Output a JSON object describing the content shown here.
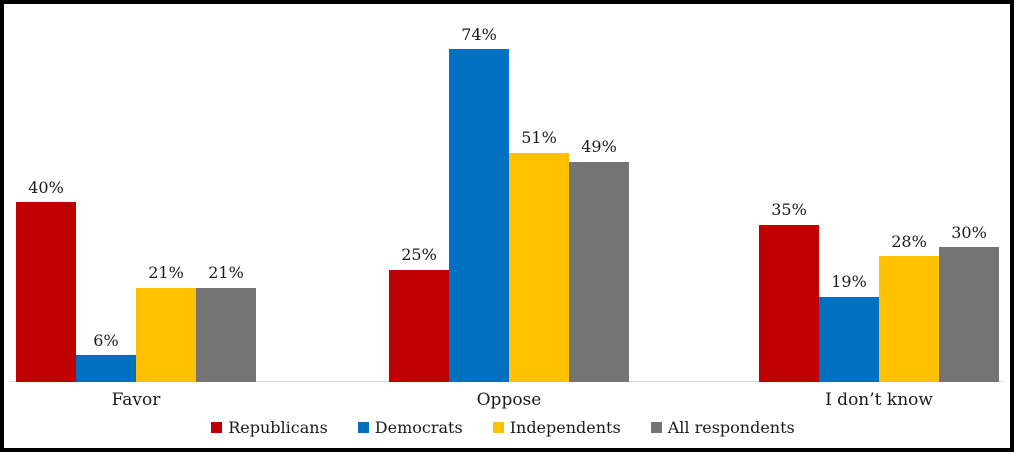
{
  "chart_data": {
    "type": "bar",
    "title": "",
    "xlabel": "",
    "ylabel": "",
    "categories": [
      "Favor",
      "Oppose",
      "I don’t know"
    ],
    "series": [
      {
        "name": "Republicans",
        "color": "#C00000",
        "values": [
          40,
          25,
          35
        ]
      },
      {
        "name": "Democrats",
        "color": "#0070C0",
        "values": [
          6,
          74,
          19
        ]
      },
      {
        "name": "Independents",
        "color": "#FFC000",
        "values": [
          21,
          51,
          28
        ]
      },
      {
        "name": "All respondents",
        "color": "#747474",
        "values": [
          21,
          49,
          30
        ]
      }
    ],
    "value_suffix": "%",
    "data_labels": true,
    "ylim": [
      0,
      84
    ],
    "grid": false,
    "y_axis_visible": false,
    "legend_position": "bottom",
    "axis_line_color": "#D9D9D9"
  },
  "frame": {
    "border_color": "#000000",
    "background": "#FFFFFF",
    "text_color": "#1A1A1A"
  }
}
